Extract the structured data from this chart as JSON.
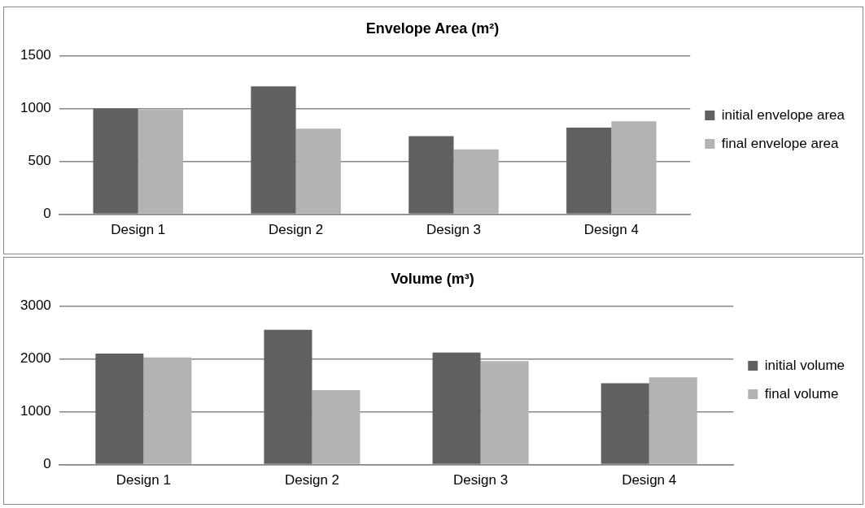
{
  "chart_data": [
    {
      "type": "bar",
      "title": "Envelope Area (m²)",
      "categories": [
        "Design 1",
        "Design 2",
        "Design 3",
        "Design 4"
      ],
      "series": [
        {
          "name": "initial envelope area",
          "color": "#606060",
          "values": [
            1000,
            1210,
            740,
            820
          ]
        },
        {
          "name": "final envelope area",
          "color": "#b3b3b3",
          "values": [
            990,
            810,
            615,
            880
          ]
        }
      ],
      "ylim": [
        0,
        1500
      ],
      "yticks": [
        0,
        500,
        1000,
        1500
      ],
      "grid": "y",
      "legend": "right"
    },
    {
      "type": "bar",
      "title": "Volume (m³)",
      "categories": [
        "Design 1",
        "Design 2",
        "Design 3",
        "Design 4"
      ],
      "series": [
        {
          "name": "initial volume",
          "color": "#606060",
          "values": [
            2100,
            2550,
            2120,
            1540
          ]
        },
        {
          "name": "final volume",
          "color": "#b3b3b3",
          "values": [
            2030,
            1410,
            1960,
            1650
          ]
        }
      ],
      "ylim": [
        0,
        3000
      ],
      "yticks": [
        0,
        1000,
        2000,
        3000
      ],
      "grid": "y",
      "legend": "right"
    }
  ]
}
